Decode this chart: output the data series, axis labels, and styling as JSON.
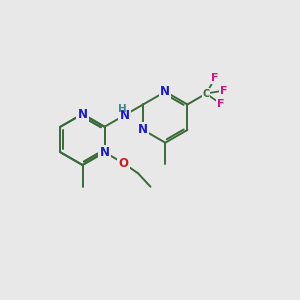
{
  "bg_color": "#e8e8e8",
  "bond_color": "#3a6a3a",
  "n_color": "#1a1acc",
  "o_color": "#cc1a1a",
  "f_color": "#cc1a80",
  "h_color": "#3a8a8a",
  "bw": 1.4,
  "fs": 8.5,
  "sfs": 7.0,
  "xlim": [
    0,
    10
  ],
  "ylim": [
    0,
    10
  ]
}
